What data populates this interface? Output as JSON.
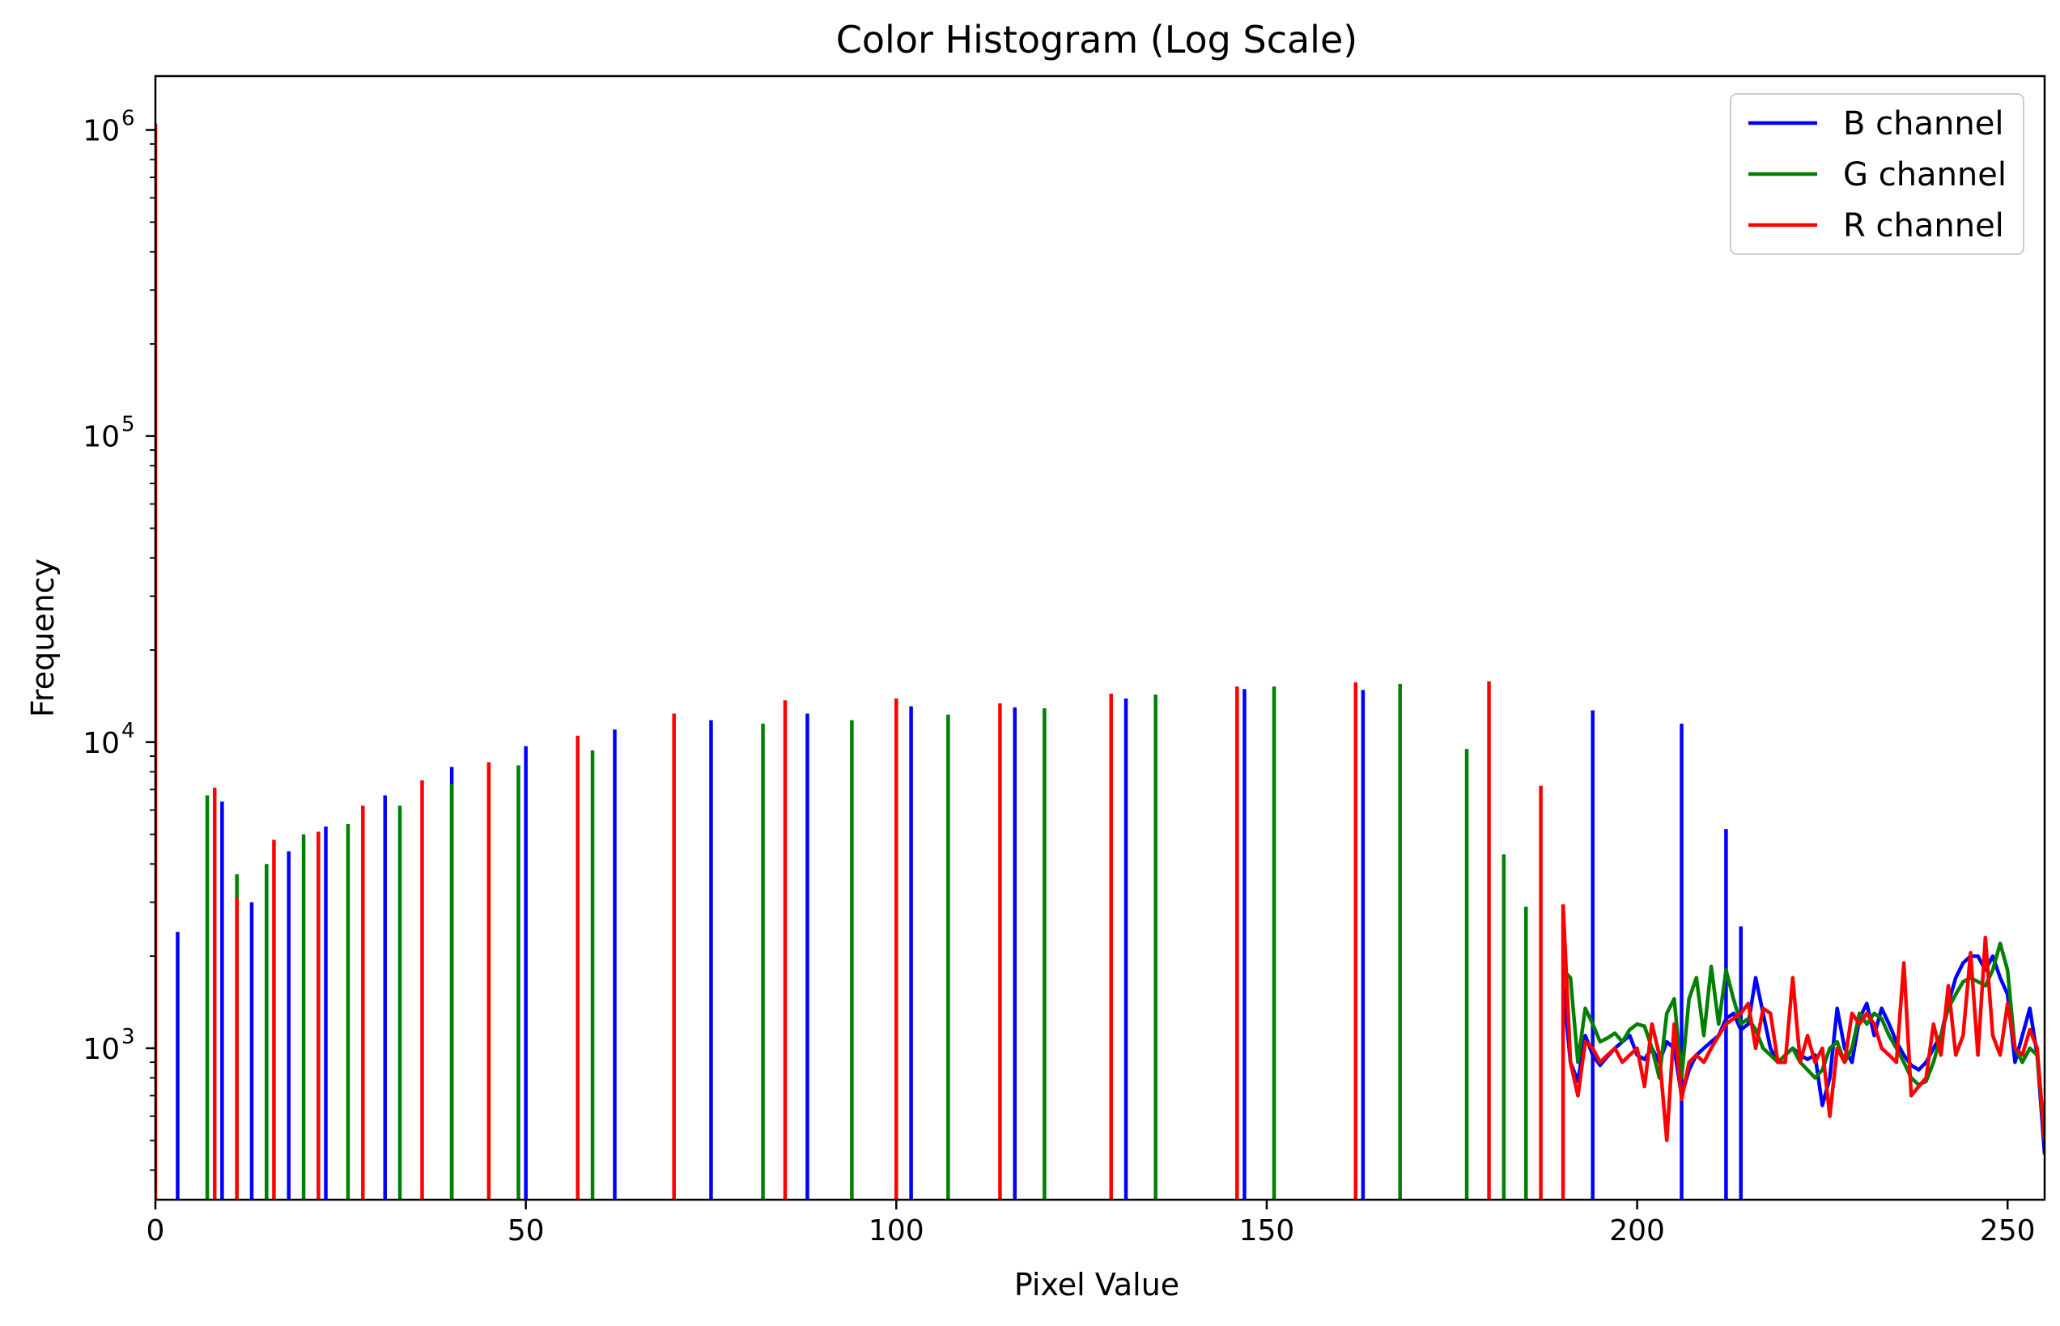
{
  "chart_data": {
    "type": "line",
    "title": "Color Histogram (Log Scale)",
    "xlabel": "Pixel Value",
    "ylabel": "Frequency",
    "xlim": [
      0,
      255
    ],
    "ylim": [
      320,
      1500000
    ],
    "yscale": "log",
    "grid": false,
    "legend_position": "top-right",
    "x_ticks": [
      0,
      50,
      100,
      150,
      200,
      250
    ],
    "x_tick_labels": [
      "0",
      "50",
      "100",
      "150",
      "200",
      "250"
    ],
    "y_ticks": [
      1000,
      10000,
      100000,
      1000000
    ],
    "y_tick_labels": [
      {
        "base": "10",
        "exp": "3"
      },
      {
        "base": "10",
        "exp": "4"
      },
      {
        "base": "10",
        "exp": "5"
      },
      {
        "base": "10",
        "exp": "6"
      }
    ],
    "series": [
      {
        "name": "B channel",
        "color": "#0000ff",
        "spikes": [
          [
            3,
            2400
          ],
          [
            9,
            6400
          ],
          [
            13,
            3000
          ],
          [
            18,
            4400
          ],
          [
            23,
            5300
          ],
          [
            31,
            6700
          ],
          [
            40,
            8300
          ],
          [
            50,
            9700
          ],
          [
            62,
            11000
          ],
          [
            75,
            11800
          ],
          [
            88,
            12400
          ],
          [
            102,
            13100
          ],
          [
            116,
            13000
          ],
          [
            131,
            13900
          ],
          [
            147,
            14900
          ],
          [
            163,
            14800
          ],
          [
            194,
            12700
          ],
          [
            206,
            11500
          ],
          [
            212,
            5200
          ],
          [
            214,
            2500
          ]
        ],
        "tail": [
          [
            190,
            1600
          ],
          [
            191,
            900
          ],
          [
            192,
            780
          ],
          [
            193,
            1100
          ],
          [
            194,
            950
          ],
          [
            195,
            880
          ],
          [
            196,
            940
          ],
          [
            197,
            1000
          ],
          [
            198,
            1050
          ],
          [
            199,
            1100
          ],
          [
            200,
            950
          ],
          [
            201,
            920
          ],
          [
            202,
            1000
          ],
          [
            203,
            900
          ],
          [
            204,
            1050
          ],
          [
            205,
            1000
          ],
          [
            206,
            700
          ],
          [
            207,
            850
          ],
          [
            208,
            950
          ],
          [
            209,
            1000
          ],
          [
            210,
            1050
          ],
          [
            211,
            1100
          ],
          [
            212,
            1250
          ],
          [
            213,
            1300
          ],
          [
            214,
            1150
          ],
          [
            215,
            1200
          ],
          [
            216,
            1700
          ],
          [
            217,
            1300
          ],
          [
            218,
            1000
          ],
          [
            219,
            900
          ],
          [
            220,
            950
          ],
          [
            221,
            1000
          ],
          [
            222,
            950
          ],
          [
            223,
            920
          ],
          [
            224,
            950
          ],
          [
            225,
            650
          ],
          [
            226,
            800
          ],
          [
            227,
            1350
          ],
          [
            228,
            1000
          ],
          [
            229,
            900
          ],
          [
            230,
            1250
          ],
          [
            231,
            1400
          ],
          [
            232,
            1100
          ],
          [
            233,
            1350
          ],
          [
            234,
            1200
          ],
          [
            235,
            1050
          ],
          [
            236,
            950
          ],
          [
            237,
            880
          ],
          [
            238,
            850
          ],
          [
            239,
            900
          ],
          [
            240,
            1000
          ],
          [
            241,
            1100
          ],
          [
            242,
            1400
          ],
          [
            243,
            1700
          ],
          [
            244,
            1900
          ],
          [
            245,
            2000
          ],
          [
            246,
            2000
          ],
          [
            247,
            1800
          ],
          [
            248,
            2000
          ],
          [
            249,
            1700
          ],
          [
            250,
            1500
          ],
          [
            251,
            900
          ],
          [
            252,
            1100
          ],
          [
            253,
            1350
          ],
          [
            254,
            950
          ],
          [
            255,
            450
          ]
        ]
      },
      {
        "name": "G channel",
        "color": "#008000",
        "spikes": [
          [
            7,
            6700
          ],
          [
            11,
            3700
          ],
          [
            15,
            4000
          ],
          [
            20,
            5000
          ],
          [
            26,
            5400
          ],
          [
            33,
            6200
          ],
          [
            40,
            7300
          ],
          [
            49,
            8400
          ],
          [
            59,
            9400
          ],
          [
            82,
            11500
          ],
          [
            94,
            11800
          ],
          [
            107,
            12300
          ],
          [
            120,
            12900
          ],
          [
            135,
            14300
          ],
          [
            151,
            15200
          ],
          [
            168,
            15500
          ],
          [
            177,
            9500
          ],
          [
            182,
            4300
          ],
          [
            185,
            2900
          ]
        ],
        "tail": [
          [
            190,
            1800
          ],
          [
            191,
            1700
          ],
          [
            192,
            900
          ],
          [
            193,
            1350
          ],
          [
            194,
            1200
          ],
          [
            195,
            1050
          ],
          [
            196,
            1080
          ],
          [
            197,
            1120
          ],
          [
            198,
            1050
          ],
          [
            199,
            1150
          ],
          [
            200,
            1200
          ],
          [
            201,
            1180
          ],
          [
            202,
            1000
          ],
          [
            203,
            800
          ],
          [
            204,
            1300
          ],
          [
            205,
            1450
          ],
          [
            206,
            800
          ],
          [
            207,
            1450
          ],
          [
            208,
            1700
          ],
          [
            209,
            1100
          ],
          [
            210,
            1850
          ],
          [
            211,
            1200
          ],
          [
            212,
            1800
          ],
          [
            213,
            1450
          ],
          [
            214,
            1200
          ],
          [
            215,
            1250
          ],
          [
            216,
            1150
          ],
          [
            217,
            1000
          ],
          [
            218,
            950
          ],
          [
            219,
            900
          ],
          [
            220,
            950
          ],
          [
            221,
            1000
          ],
          [
            222,
            900
          ],
          [
            223,
            850
          ],
          [
            224,
            800
          ],
          [
            225,
            850
          ],
          [
            226,
            1000
          ],
          [
            227,
            1050
          ],
          [
            228,
            900
          ],
          [
            229,
            1000
          ],
          [
            230,
            1300
          ],
          [
            231,
            1200
          ],
          [
            232,
            1300
          ],
          [
            233,
            1250
          ],
          [
            234,
            1100
          ],
          [
            235,
            1000
          ],
          [
            236,
            900
          ],
          [
            237,
            800
          ],
          [
            238,
            760
          ],
          [
            239,
            780
          ],
          [
            240,
            900
          ],
          [
            241,
            1100
          ],
          [
            242,
            1350
          ],
          [
            243,
            1500
          ],
          [
            244,
            1650
          ],
          [
            245,
            1700
          ],
          [
            246,
            1650
          ],
          [
            247,
            1600
          ],
          [
            248,
            1800
          ],
          [
            249,
            2200
          ],
          [
            250,
            1800
          ],
          [
            251,
            1000
          ],
          [
            252,
            900
          ],
          [
            253,
            1000
          ],
          [
            254,
            950
          ],
          [
            255,
            500
          ]
        ]
      },
      {
        "name": "R channel",
        "color": "#ff0000",
        "spikes": [
          [
            0,
            1050000
          ],
          [
            8,
            7100
          ],
          [
            11,
            3100
          ],
          [
            16,
            4800
          ],
          [
            22,
            5100
          ],
          [
            28,
            6200
          ],
          [
            36,
            7500
          ],
          [
            45,
            8600
          ],
          [
            57,
            10500
          ],
          [
            70,
            12400
          ],
          [
            85,
            13700
          ],
          [
            100,
            13900
          ],
          [
            114,
            13400
          ],
          [
            129,
            14400
          ],
          [
            146,
            15200
          ],
          [
            162,
            15700
          ],
          [
            180,
            15800
          ],
          [
            187,
            7200
          ],
          [
            190,
            2950
          ]
        ],
        "tail": [
          [
            190,
            2950
          ],
          [
            191,
            900
          ],
          [
            192,
            700
          ],
          [
            193,
            1050
          ],
          [
            194,
            1000
          ],
          [
            195,
            900
          ],
          [
            196,
            950
          ],
          [
            197,
            1000
          ],
          [
            198,
            900
          ],
          [
            199,
            950
          ],
          [
            200,
            1000
          ],
          [
            201,
            750
          ],
          [
            202,
            1200
          ],
          [
            203,
            950
          ],
          [
            204,
            500
          ],
          [
            205,
            1200
          ],
          [
            206,
            680
          ],
          [
            207,
            900
          ],
          [
            208,
            950
          ],
          [
            209,
            900
          ],
          [
            210,
            1000
          ],
          [
            211,
            1100
          ],
          [
            212,
            1200
          ],
          [
            213,
            1250
          ],
          [
            214,
            1300
          ],
          [
            215,
            1400
          ],
          [
            216,
            1000
          ],
          [
            217,
            1350
          ],
          [
            218,
            1300
          ],
          [
            219,
            900
          ],
          [
            220,
            900
          ],
          [
            221,
            1700
          ],
          [
            222,
            900
          ],
          [
            223,
            1100
          ],
          [
            224,
            900
          ],
          [
            225,
            1000
          ],
          [
            226,
            600
          ],
          [
            227,
            1000
          ],
          [
            228,
            900
          ],
          [
            229,
            1300
          ],
          [
            230,
            1200
          ],
          [
            231,
            1300
          ],
          [
            232,
            1200
          ],
          [
            233,
            1000
          ],
          [
            234,
            950
          ],
          [
            235,
            900
          ],
          [
            236,
            1900
          ],
          [
            237,
            700
          ],
          [
            238,
            750
          ],
          [
            239,
            800
          ],
          [
            240,
            1200
          ],
          [
            241,
            950
          ],
          [
            242,
            1600
          ],
          [
            243,
            950
          ],
          [
            244,
            1100
          ],
          [
            245,
            2050
          ],
          [
            246,
            950
          ],
          [
            247,
            2300
          ],
          [
            248,
            1100
          ],
          [
            249,
            950
          ],
          [
            250,
            1400
          ],
          [
            251,
            1000
          ],
          [
            252,
            950
          ],
          [
            253,
            1150
          ],
          [
            254,
            1000
          ],
          [
            255,
            500
          ]
        ]
      }
    ]
  }
}
